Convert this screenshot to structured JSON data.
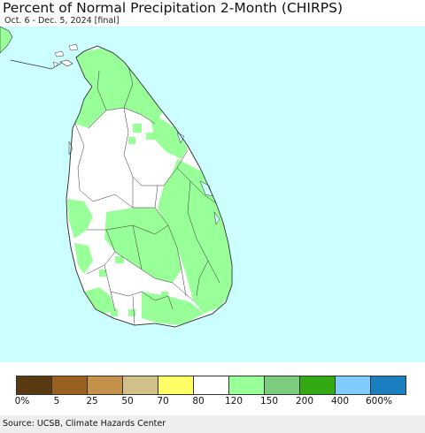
{
  "header": {
    "title": "Percent of Normal Precipitation 2-Month (CHIRPS)",
    "subtitle": "Oct. 6 - Dec. 5, 2024 [final]"
  },
  "legend": {
    "swatches": [
      {
        "color": "#5a3a10"
      },
      {
        "color": "#98611f"
      },
      {
        "color": "#c4914b"
      },
      {
        "color": "#d2c08a"
      },
      {
        "color": "#ffff66"
      },
      {
        "color": "#ffffff"
      },
      {
        "color": "#99ff99"
      },
      {
        "color": "#7dcc7d"
      },
      {
        "color": "#33aa11"
      },
      {
        "color": "#7fccff"
      },
      {
        "color": "#1a80c0"
      }
    ],
    "tick_labels": [
      "0%",
      "5",
      "25",
      "50",
      "70",
      "80",
      "120",
      "150",
      "200",
      "400",
      "600%"
    ]
  },
  "footer": {
    "source": "Source: UCSB, Climate Hazards Center"
  },
  "colors": {
    "ocean": "#ccffff",
    "land_normal": "#ffffff",
    "land_above_normal": "#99ff99",
    "boundary": "#333333"
  }
}
